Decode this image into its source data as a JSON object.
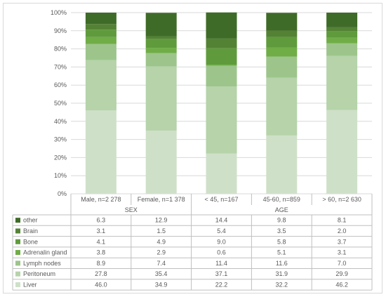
{
  "chart_data": {
    "type": "bar",
    "stacked": "percent",
    "categories": [
      "Male, n=2 278",
      "Female, n=1 378",
      "< 45, n=167",
      "45-60, n=859",
      "> 60, n=2 630"
    ],
    "groups": [
      {
        "label": "SEX",
        "span": [
          0,
          1
        ]
      },
      {
        "label": "AGE",
        "span": [
          2,
          4
        ]
      }
    ],
    "ylim": [
      0,
      100
    ],
    "yticks": [
      "0%",
      "10%",
      "20%",
      "30%",
      "40%",
      "50%",
      "60%",
      "70%",
      "80%",
      "90%",
      "100%"
    ],
    "series": [
      {
        "name": "Liver",
        "color": "#cfe0c9",
        "display": [
          "46.0",
          "34.9",
          "22.2",
          "32.2",
          "46.2"
        ],
        "values": [
          46.0,
          34.9,
          22.2,
          32.2,
          46.2
        ]
      },
      {
        "name": "Peritoneum",
        "color": "#b6d3aa",
        "display": [
          "27.8",
          "35.4",
          "37.1",
          "31.9",
          "29.9"
        ],
        "values": [
          27.8,
          35.4,
          37.1,
          31.9,
          29.9
        ]
      },
      {
        "name": "Lymph nodes",
        "color": "#9dc58b",
        "display": [
          "8.9",
          "7.4",
          "11.4",
          "11.6",
          "7.0"
        ],
        "values": [
          8.9,
          7.4,
          11.4,
          11.6,
          7.0
        ]
      },
      {
        "name": "Adrenalin gland",
        "color": "#70ad47",
        "display": [
          "3.8",
          "2.9",
          "0.6",
          "5.1",
          "3.1"
        ],
        "values": [
          3.8,
          2.9,
          0.6,
          5.1,
          3.1
        ]
      },
      {
        "name": "Bone",
        "color": "#5f9b3c",
        "display": [
          "4.1",
          "4.9",
          "9.0",
          "5.8",
          "3.7"
        ],
        "values": [
          4.1,
          4.9,
          9.0,
          5.8,
          3.7
        ]
      },
      {
        "name": "Brain",
        "color": "#548235",
        "display": [
          "3.1",
          "1.5",
          "5.4",
          "3.5",
          "2.0"
        ],
        "values": [
          3.1,
          1.5,
          5.4,
          3.5,
          2.0
        ]
      },
      {
        "name": "other",
        "color": "#3f6b28",
        "display": [
          "6.3",
          "12.9",
          "14.4",
          "9.8",
          "8.1"
        ],
        "values": [
          6.3,
          12.9,
          14.4,
          9.8,
          8.1
        ]
      }
    ],
    "colors": {
      "grid": "#d9d9d9",
      "table_border": "#bfbfbf",
      "text": "#595959"
    }
  }
}
